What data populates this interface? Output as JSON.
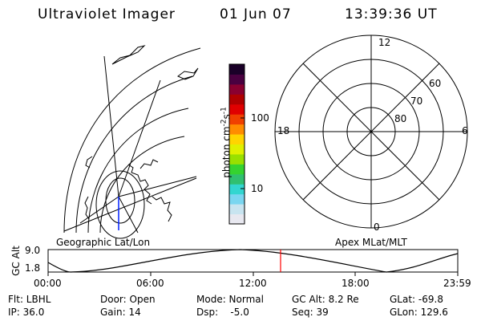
{
  "header": {
    "instrument": "Ultraviolet Imager",
    "date": "01 Jun 07",
    "time": "13:39:36 UT"
  },
  "colorbar": {
    "label": "photon cm",
    "sup1": "-2",
    "mid": "s",
    "sup2": "-1",
    "tick_100": "100",
    "tick_10": "10",
    "colors": [
      "#e8e8f0",
      "#c8e4f0",
      "#7ad6f0",
      "#33d6d0",
      "#30c070",
      "#35d330",
      "#99e000",
      "#e0f000",
      "#ffd400",
      "#ff8c00",
      "#f04000",
      "#e00000",
      "#b00000",
      "#8a0030",
      "#4a0040",
      "#1a0028"
    ]
  },
  "polar_plot": {
    "label_12": "12",
    "label_18": "18",
    "label_6": "6",
    "label_0": "0",
    "label_60": "60",
    "label_70": "70",
    "label_80": "80"
  },
  "labels": {
    "geo": "Geographic Lat/Lon",
    "apex": "Apex MLat/MLT"
  },
  "altitude_strip": {
    "axis_label": "GC Alt",
    "ymax": "9.0",
    "ymin": "1.8",
    "xticks": [
      "00:00",
      "06:00",
      "12:00",
      "18:00",
      "23:59"
    ],
    "current_marker_time": "13:39"
  },
  "status": {
    "flt": "Flt: LBHL",
    "ip": "IP: 36.0",
    "door": "Door: Open",
    "gain": "Gain: 14",
    "mode": "Mode: Normal",
    "dsp": "Dsp:    -5.0",
    "gcalt": "GC Alt: 8.2 Re",
    "seq": "Seq: 39",
    "glat": "GLat: -69.8",
    "glon": "GLon: 129.6"
  }
}
